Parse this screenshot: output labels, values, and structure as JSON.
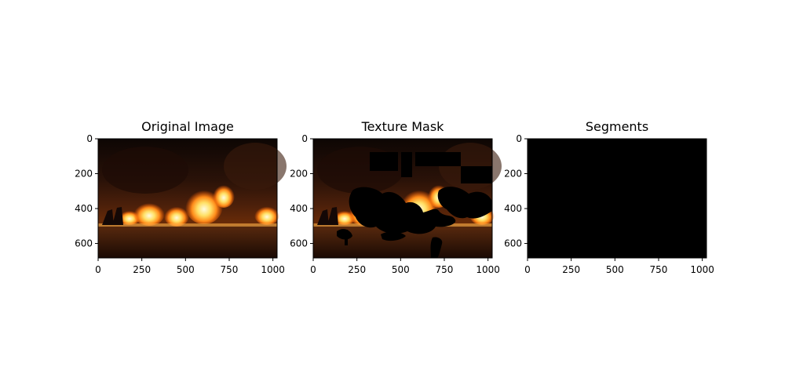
{
  "chart_data": [
    {
      "type": "image",
      "title": "Original Image",
      "xlabel": "",
      "ylabel": "",
      "xlim": [
        0,
        1024
      ],
      "ylim": [
        683,
        0
      ],
      "xticks": [
        0,
        250,
        500,
        750,
        1000
      ],
      "yticks": [
        0,
        200,
        400,
        600
      ],
      "content": "fire photograph"
    },
    {
      "type": "image",
      "title": "Texture Mask",
      "xlabel": "",
      "ylabel": "",
      "xlim": [
        0,
        1024
      ],
      "ylim": [
        683,
        0
      ],
      "xticks": [
        0,
        250,
        500,
        750,
        1000
      ],
      "yticks": [
        0,
        200,
        400,
        600
      ],
      "content": "fire photograph with masked regions"
    },
    {
      "type": "image",
      "title": "Segments",
      "xlabel": "",
      "ylabel": "",
      "xlim": [
        0,
        1024
      ],
      "ylim": [
        683,
        0
      ],
      "xticks": [
        0,
        250,
        500,
        750,
        1000
      ],
      "yticks": [
        0,
        200,
        400,
        600
      ],
      "content": "all black"
    }
  ],
  "colors": {
    "mask": "#000000",
    "fire_core": "#fff2a8",
    "fire_mid": "#ff8c1a",
    "fire_dark": "#7a2a05",
    "background": "#120804"
  }
}
